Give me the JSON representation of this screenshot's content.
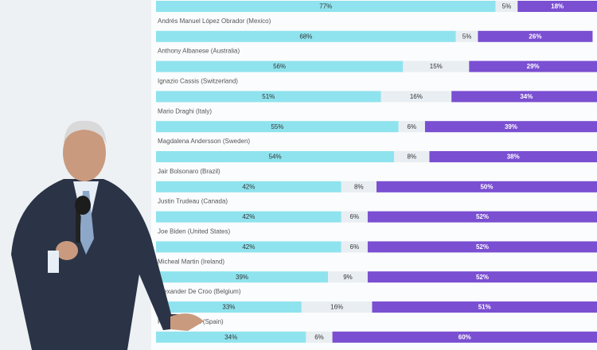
{
  "chart_data": {
    "type": "stacked-bar-horizontal",
    "categories": [
      null,
      "Andrés Manuel López Obrador (Mexico)",
      "Anthony Albanese (Australia)",
      "Ignazio Cassis (Switzerland)",
      "Mario Draghi (Italy)",
      "Magdalena Andersson (Sweden)",
      "Jair Bolsonaro (Brazil)",
      "Justin Trudeau (Canada)",
      "Joe Biden (United States)",
      "Micheal Martin (Ireland)",
      "Alexander De Croo (Belgium)",
      "Pedro Sánchez (Spain)"
    ],
    "series": [
      {
        "color": "#8fe3ee",
        "values": [
          77,
          68,
          56,
          51,
          55,
          54,
          42,
          42,
          42,
          39,
          33,
          34
        ],
        "value_labels": [
          "77%",
          "68%",
          "56%",
          "51%",
          "55%",
          "54%",
          "42%",
          "42%",
          "42%",
          "39%",
          "33%",
          "34%"
        ]
      },
      {
        "color": "#e9eef2",
        "values": [
          5,
          5,
          15,
          16,
          6,
          8,
          8,
          6,
          6,
          9,
          16,
          6
        ],
        "value_labels": [
          "5%",
          "5%",
          "15%",
          "16%",
          "6%",
          "8%",
          "8%",
          "6%",
          "6%",
          "9%",
          "16%",
          "6%"
        ]
      },
      {
        "color": "#7a4fd1",
        "values": [
          18,
          26,
          29,
          34,
          39,
          38,
          50,
          52,
          52,
          52,
          51,
          60
        ],
        "value_labels": [
          "18%",
          "26%",
          "29%",
          "34%",
          "39%",
          "38%",
          "50%",
          "52%",
          "52%",
          "52%",
          "51%",
          "60%"
        ]
      }
    ],
    "xlim": [
      0,
      100
    ]
  }
}
